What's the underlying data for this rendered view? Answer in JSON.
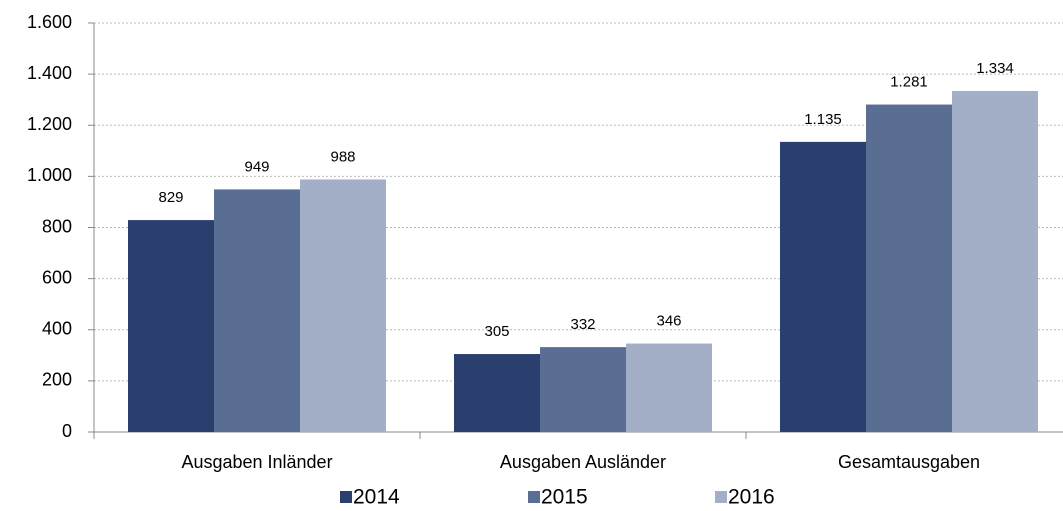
{
  "chart_data": {
    "type": "bar",
    "categories": [
      "Ausgaben Inländer",
      "Ausgaben Ausländer",
      "Gesamtausgaben"
    ],
    "series": [
      {
        "name": "2014",
        "color": "#2b3f6e",
        "values": [
          829,
          305,
          1135
        ],
        "value_labels": [
          "829",
          "305",
          "1.135"
        ]
      },
      {
        "name": "2015",
        "color": "#5a6d92",
        "values": [
          949,
          332,
          1281
        ],
        "value_labels": [
          "949",
          "332",
          "1.281"
        ]
      },
      {
        "name": "2016",
        "color": "#a3afc7",
        "values": [
          988,
          346,
          1334
        ],
        "value_labels": [
          "988",
          "346",
          "1.334"
        ]
      }
    ],
    "ylim": [
      0,
      1600
    ],
    "yticks": [
      0,
      200,
      400,
      600,
      800,
      {
        "value": 1000,
        "label": "1.000"
      },
      {
        "value": 1200,
        "label": "1.200"
      },
      {
        "value": 1400,
        "label": "1.400"
      },
      {
        "value": 1600,
        "label": "1.600"
      }
    ],
    "grid": true,
    "legend": "bottom"
  }
}
